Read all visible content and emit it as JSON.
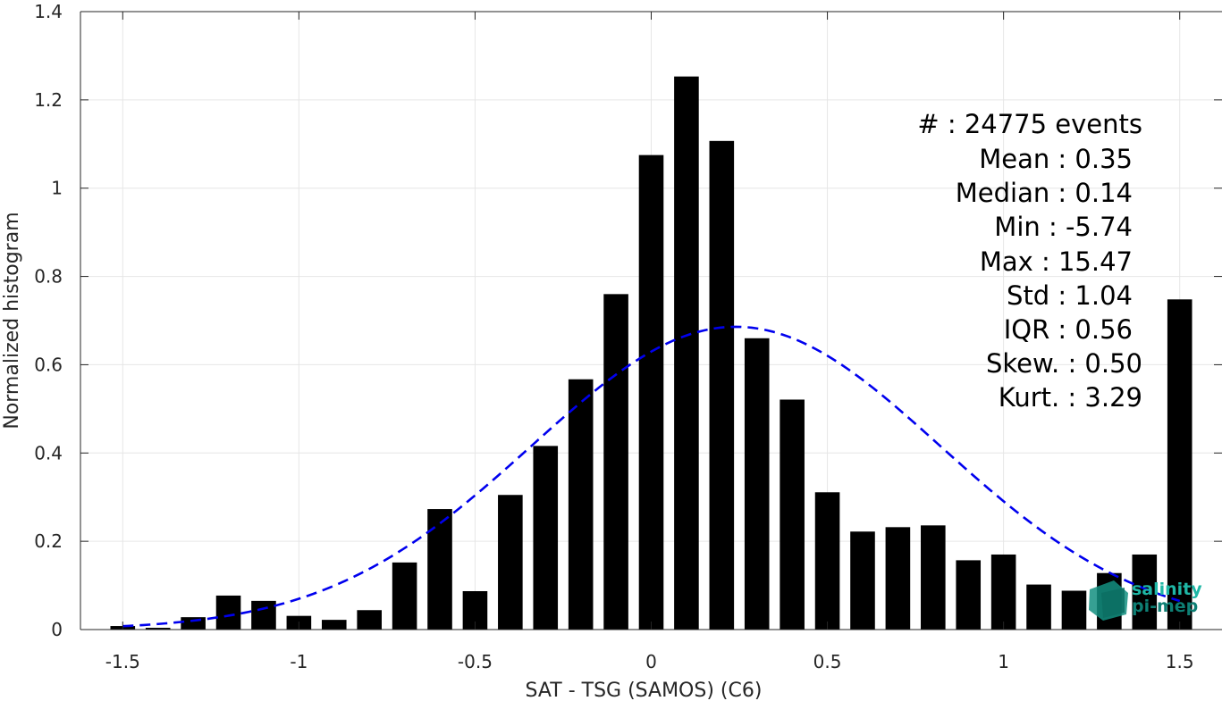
{
  "chart_data": {
    "type": "bar",
    "xlabel": "SAT - TSG (SAMOS) (C6)",
    "ylabel": "Normalized histogram",
    "xlim": [
      -1.62,
      1.62
    ],
    "ylim": [
      0,
      1.4
    ],
    "x_ticks": [
      -1.5,
      -1,
      -0.5,
      0,
      0.5,
      1,
      1.5
    ],
    "x_tick_labels": [
      "-1.5",
      "-1",
      "-0.5",
      "0",
      "0.5",
      "1",
      "1.5"
    ],
    "y_ticks": [
      0,
      0.2,
      0.4,
      0.6,
      0.8,
      1,
      1.2,
      1.4
    ],
    "y_tick_labels": [
      "0",
      "0.2",
      "0.4",
      "0.6",
      "0.8",
      "1",
      "1.2",
      "1.4"
    ],
    "grid": true,
    "bar_width": 0.07,
    "x": [
      -1.5,
      -1.4,
      -1.3,
      -1.2,
      -1.1,
      -1.0,
      -0.9,
      -0.8,
      -0.7,
      -0.6,
      -0.5,
      -0.4,
      -0.3,
      -0.2,
      -0.1,
      0.0,
      0.1,
      0.2,
      0.3,
      0.4,
      0.5,
      0.6,
      0.7,
      0.8,
      0.9,
      1.0,
      1.1,
      1.2,
      1.3,
      1.4,
      1.5
    ],
    "values": [
      0.008,
      0.004,
      0.028,
      0.077,
      0.065,
      0.031,
      0.022,
      0.044,
      0.152,
      0.273,
      0.087,
      0.305,
      0.416,
      0.567,
      0.76,
      1.075,
      1.253,
      1.107,
      0.66,
      0.521,
      0.311,
      0.222,
      0.232,
      0.236,
      0.157,
      0.17,
      0.102,
      0.088,
      0.128,
      0.17,
      0.748
    ],
    "bar_color": "#000000",
    "fit_curve": {
      "style": "dashed",
      "color": "#0000ee",
      "mean": 0.24,
      "std": 0.58,
      "peak": 0.686,
      "x_range": [
        -1.5,
        1.5
      ]
    },
    "stats": {
      "lines": [
        "#  : 24775 events",
        "Mean : 0.35",
        "Median : 0.14",
        "Min : -5.74",
        "Max : 15.47",
        "Std : 1.04",
        "IQR : 0.56",
        "Skew. : 0.50",
        "Kurt. : 3.29"
      ],
      "placement": "top-right"
    },
    "logo": {
      "line1": "salinity",
      "line2": "pi-mep",
      "color1": "#1fb7a6",
      "color2": "#0e7f74"
    }
  }
}
